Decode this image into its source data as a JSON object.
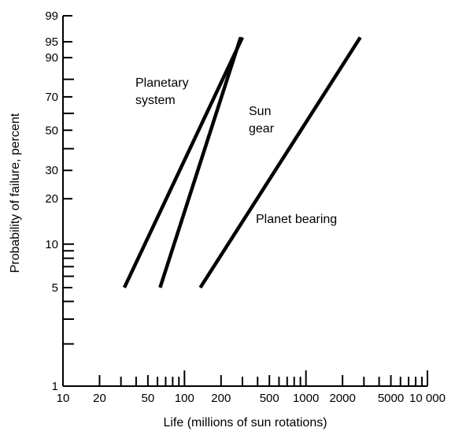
{
  "chart_data": {
    "type": "line",
    "title": "",
    "xlabel": "Life (millions of sun rotations)",
    "ylabel": "Probability of failure, percent",
    "x_scale": "log",
    "y_scale": "weibull",
    "xlim": [
      10,
      10000
    ],
    "ylim": [
      1,
      99
    ],
    "grid": false,
    "x_tick_labels": [
      "10",
      "20",
      "50",
      "100",
      "200",
      "500",
      "1000",
      "2000",
      "5000",
      "10 000"
    ],
    "x_tick_values": [
      10,
      20,
      50,
      100,
      200,
      500,
      1000,
      2000,
      5000,
      10000
    ],
    "y_tick_labels": [
      "1",
      "5",
      "10",
      "20",
      "30",
      "50",
      "70",
      "90",
      "95",
      "99"
    ],
    "y_tick_values": [
      1,
      5,
      10,
      20,
      30,
      50,
      70,
      90,
      95,
      99
    ],
    "series": [
      {
        "name": "Planetary system",
        "x": [
          32,
          300
        ],
        "y": [
          5,
          96
        ]
      },
      {
        "name": "Sun gear",
        "x": [
          63,
          290
        ],
        "y": [
          5,
          96
        ]
      },
      {
        "name": "Planet bearing",
        "x": [
          135,
          2800
        ],
        "y": [
          5,
          96
        ]
      }
    ],
    "annotations": [
      {
        "text": "Planetary system",
        "lines": [
          "Planetary",
          "system"
        ]
      },
      {
        "text": "Sun gear",
        "lines": [
          "Sun",
          "gear"
        ]
      },
      {
        "text": "Planet bearing",
        "lines": [
          "Planet bearing"
        ]
      }
    ]
  }
}
